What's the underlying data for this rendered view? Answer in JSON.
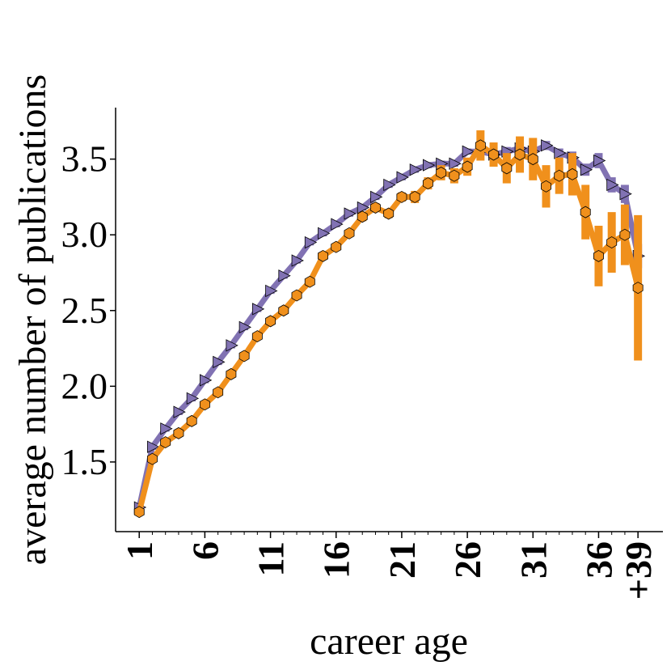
{
  "chart_data": {
    "type": "line",
    "xlabel": "career age",
    "ylabel": "average number of publications",
    "x": [
      1,
      2,
      3,
      4,
      5,
      6,
      7,
      8,
      9,
      10,
      11,
      12,
      13,
      14,
      15,
      16,
      17,
      18,
      19,
      20,
      21,
      22,
      23,
      24,
      25,
      26,
      27,
      28,
      29,
      30,
      31,
      32,
      33,
      34,
      35,
      36,
      37,
      38,
      39
    ],
    "xlim": [
      -0.8,
      40.9
    ],
    "ylim": [
      1.04,
      3.84
    ],
    "xticks": [
      1,
      6,
      11,
      16,
      21,
      26,
      31,
      36,
      {
        "value": 39,
        "label": "+39"
      }
    ],
    "yticks": [
      {
        "value": 1.5,
        "label": "1.5"
      },
      {
        "value": 2.0,
        "label": "2.0"
      },
      {
        "value": 2.5,
        "label": "2.5"
      },
      {
        "value": 3.0,
        "label": "3.0"
      },
      {
        "value": 3.5,
        "label": "3.5"
      }
    ],
    "series": [
      {
        "color": "#8172b3",
        "marker": "triangle",
        "values": [
          1.2,
          1.6,
          1.72,
          1.83,
          1.92,
          2.04,
          2.16,
          2.27,
          2.39,
          2.51,
          2.63,
          2.73,
          2.83,
          2.95,
          3.01,
          3.07,
          3.14,
          3.18,
          3.25,
          3.33,
          3.38,
          3.43,
          3.46,
          3.47,
          3.47,
          3.55,
          3.55,
          3.53,
          3.55,
          3.57,
          3.55,
          3.59,
          3.54,
          3.51,
          3.43,
          3.49,
          3.33,
          3.27,
          2.86
        ],
        "errors": [
          0.02,
          0.02,
          0.02,
          0.02,
          0.02,
          0.02,
          0.02,
          0.02,
          0.02,
          0.02,
          0.02,
          0.02,
          0.02,
          0.02,
          0.02,
          0.02,
          0.02,
          0.02,
          0.02,
          0.02,
          0.02,
          0.02,
          0.02,
          0.02,
          0.02,
          0.02,
          0.02,
          0.03,
          0.03,
          0.03,
          0.03,
          0.03,
          0.03,
          0.04,
          0.04,
          0.05,
          0.05,
          0.06,
          0.08
        ]
      },
      {
        "color": "#f0901c",
        "marker": "hexagon",
        "values": [
          1.17,
          1.52,
          1.63,
          1.69,
          1.77,
          1.88,
          1.96,
          2.08,
          2.2,
          2.33,
          2.43,
          2.5,
          2.6,
          2.69,
          2.86,
          2.92,
          3.01,
          3.12,
          3.18,
          3.14,
          3.25,
          3.25,
          3.34,
          3.41,
          3.39,
          3.45,
          3.59,
          3.53,
          3.44,
          3.53,
          3.5,
          3.32,
          3.39,
          3.4,
          3.15,
          2.86,
          2.95,
          3.0,
          2.65
        ],
        "errors": [
          0.02,
          0.02,
          0.02,
          0.02,
          0.02,
          0.02,
          0.02,
          0.02,
          0.02,
          0.02,
          0.02,
          0.02,
          0.02,
          0.02,
          0.02,
          0.02,
          0.02,
          0.03,
          0.03,
          0.03,
          0.03,
          0.04,
          0.04,
          0.05,
          0.05,
          0.06,
          0.1,
          0.08,
          0.1,
          0.12,
          0.14,
          0.14,
          0.12,
          0.14,
          0.18,
          0.2,
          0.2,
          0.2,
          0.48
        ]
      }
    ]
  }
}
